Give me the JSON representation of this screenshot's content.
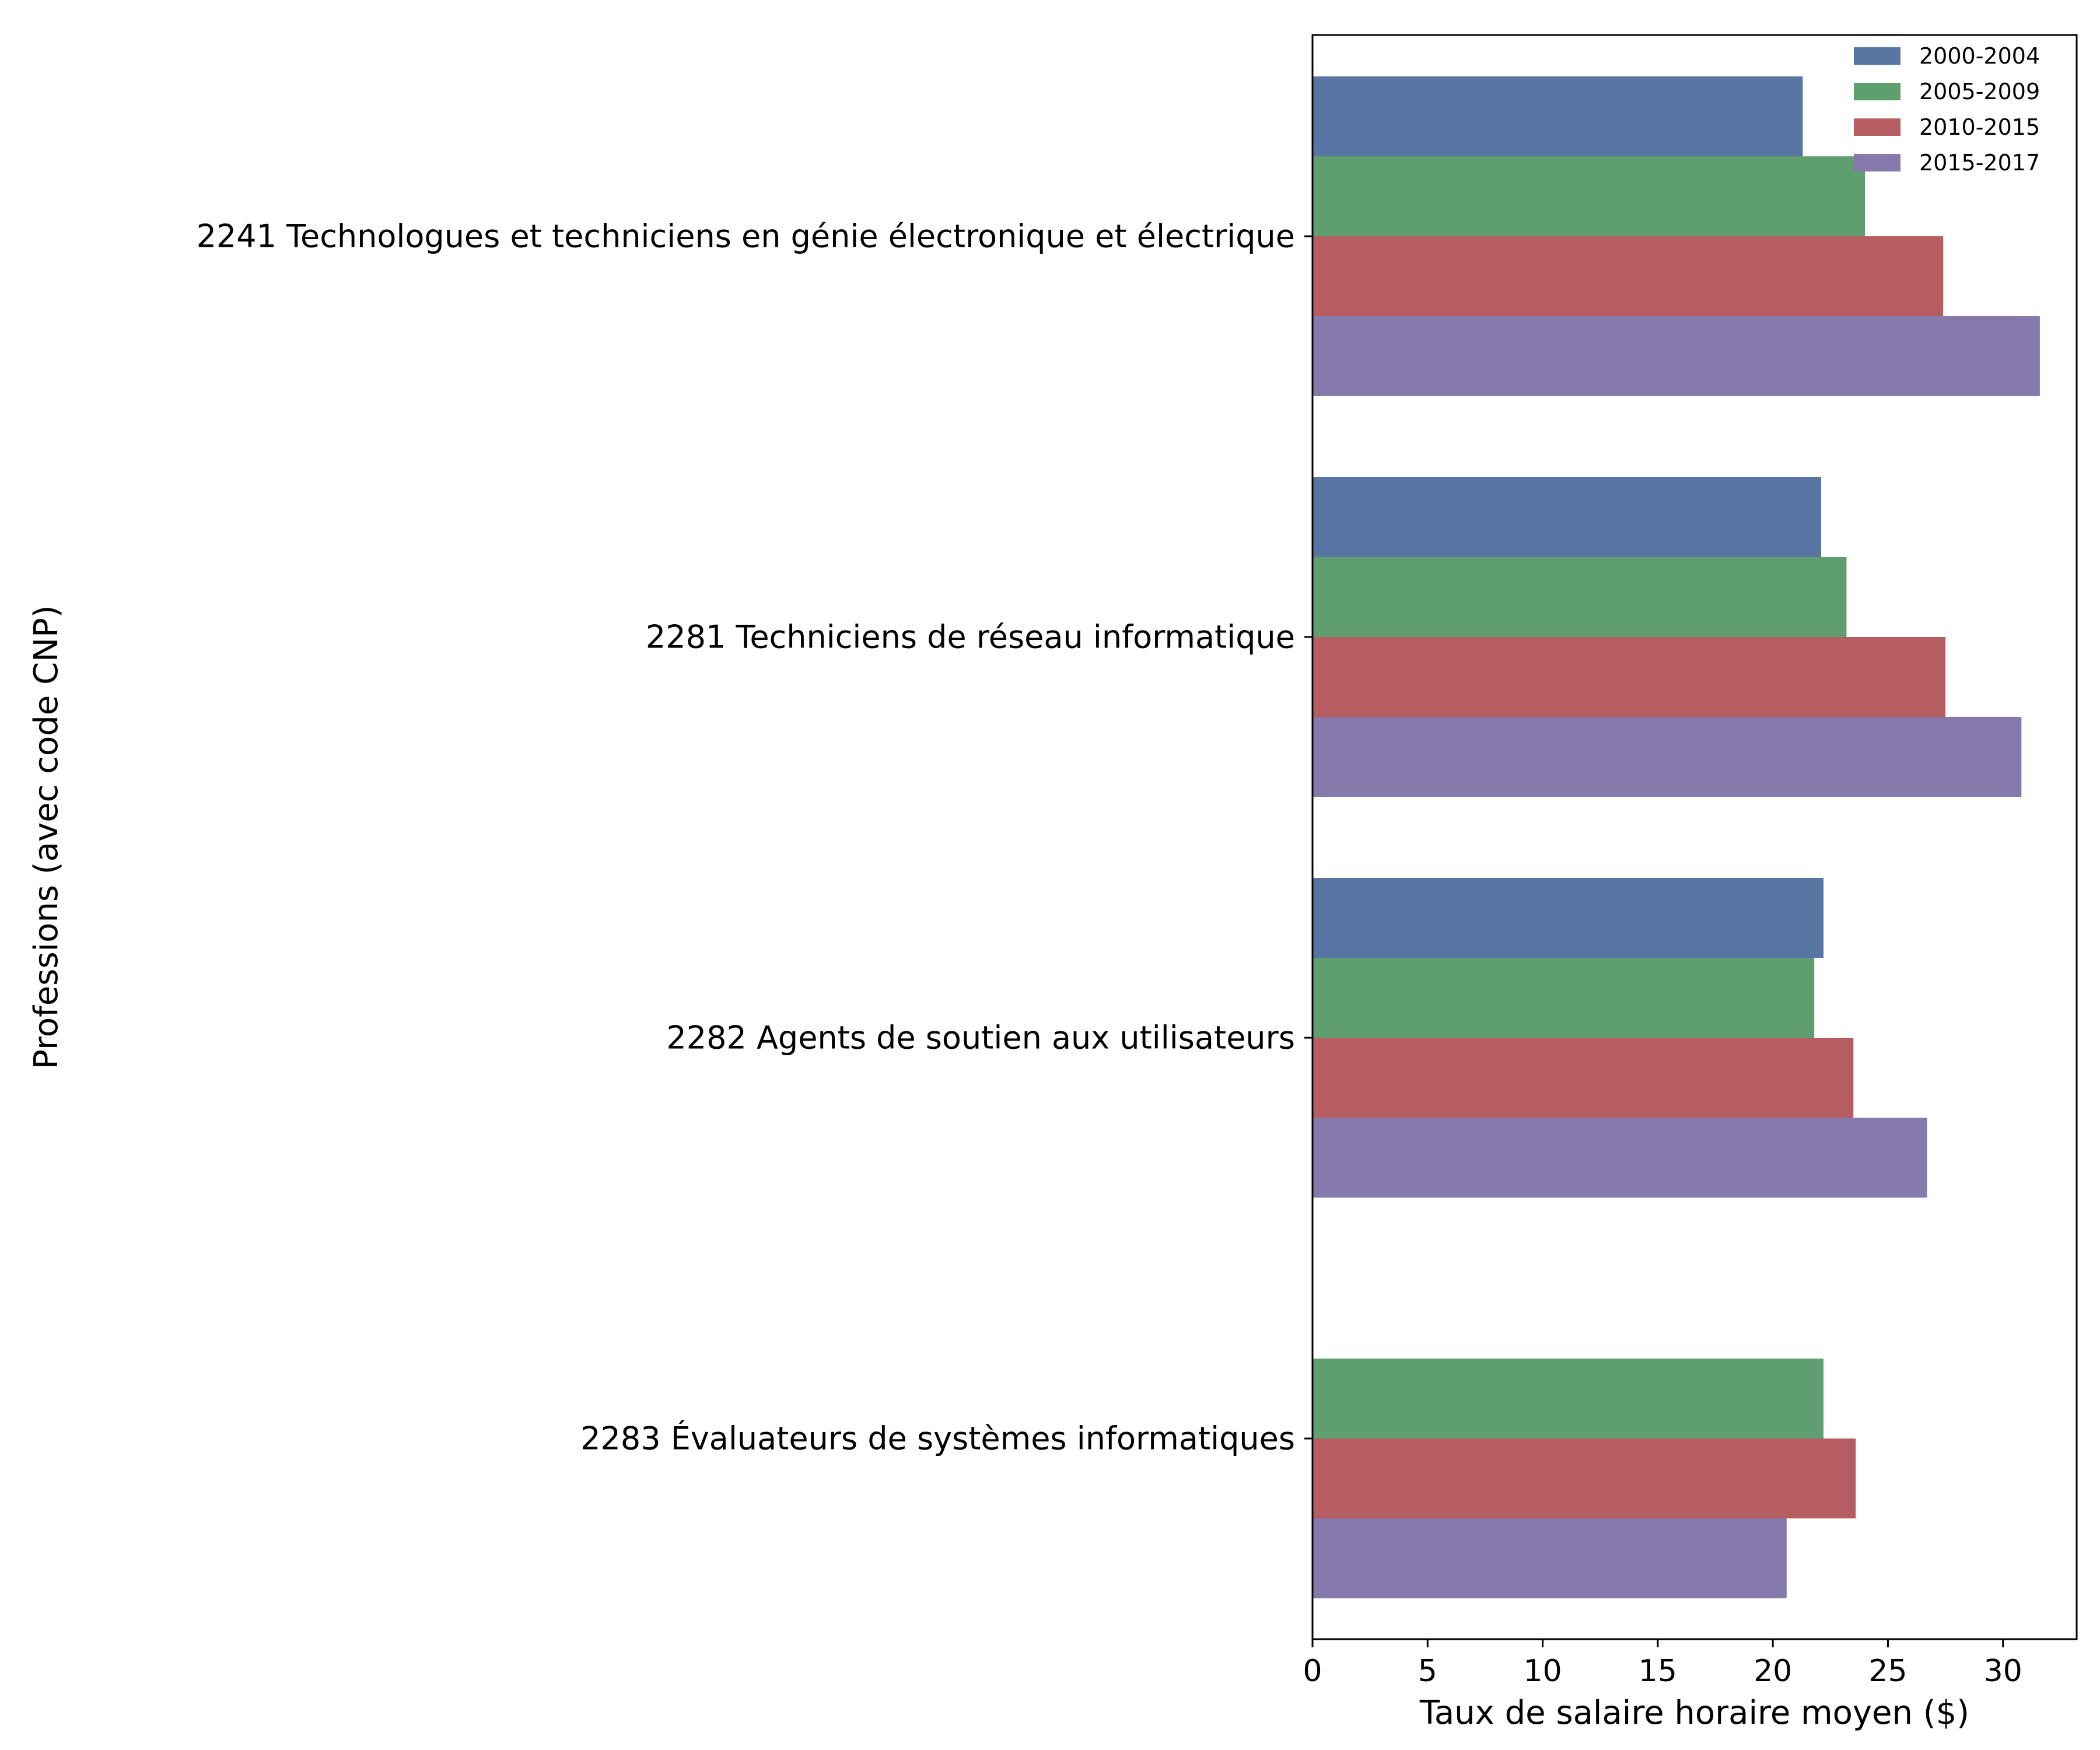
{
  "chart_data": {
    "type": "bar",
    "orientation": "horizontal",
    "categories": [
      "2241 Technologues et techniciens en génie électronique et électrique",
      "2281 Techniciens de réseau informatique",
      "2282 Agents de soutien aux utilisateurs",
      "2283 Évaluateurs de systèmes informatiques"
    ],
    "series": [
      {
        "name": "2000-2004",
        "color": "#5875a4",
        "values": [
          21.3,
          22.1,
          22.2,
          null
        ]
      },
      {
        "name": "2005-2009",
        "color": "#5f9e6e",
        "values": [
          24.0,
          23.2,
          21.8,
          22.2
        ]
      },
      {
        "name": "2010-2015",
        "color": "#b55d60",
        "values": [
          27.4,
          27.5,
          23.5,
          23.6
        ]
      },
      {
        "name": "2015-2017",
        "color": "#857aab",
        "values": [
          31.6,
          30.8,
          26.7,
          20.6
        ]
      }
    ],
    "xlabel": "Taux de salaire horaire moyen ($)",
    "ylabel": "Professions (avec code CNP)",
    "xlim": [
      0,
      33.2
    ],
    "xticks": [
      0,
      5,
      10,
      15,
      20,
      25,
      30
    ],
    "grid": false,
    "legend_position": "top-right"
  }
}
